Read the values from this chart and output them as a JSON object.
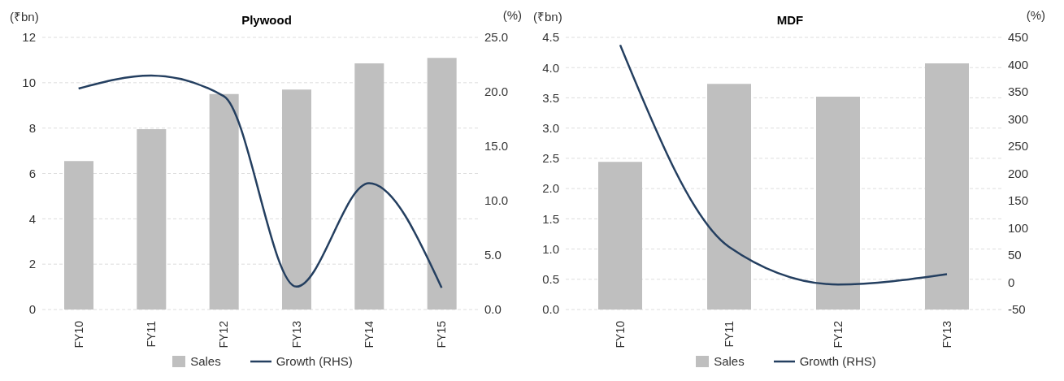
{
  "chart_data": [
    {
      "type": "bar",
      "title": "Plywood",
      "ylabel": "(₹bn)",
      "y2label": "(%)",
      "categories": [
        "FY10",
        "FY11",
        "FY12",
        "FY13",
        "FY14",
        "FY15"
      ],
      "series": [
        {
          "name": "Sales",
          "color": "#bfbfbf",
          "values": [
            6.55,
            7.95,
            9.5,
            9.7,
            10.85,
            11.1
          ]
        },
        {
          "name": "Growth (RHS)",
          "type": "line",
          "axis": "y2",
          "color": "#243f60",
          "values": [
            20.3,
            21.5,
            19.6,
            2.1,
            11.6,
            2.0
          ]
        }
      ],
      "ylim": [
        0,
        12
      ],
      "yticks": [
        0,
        2,
        4,
        6,
        8,
        10,
        12
      ],
      "y2lim": [
        0,
        25
      ],
      "y2ticks": [
        {
          "value": 0,
          "label": "0.0"
        },
        {
          "value": 5,
          "label": "5.0"
        },
        {
          "value": 10,
          "label": "10.0"
        },
        {
          "value": 15,
          "label": "15.0"
        },
        {
          "value": 20,
          "label": "20.0"
        },
        {
          "value": 25,
          "label": "25.0"
        }
      ],
      "grid": "y",
      "legend": "bottom",
      "marker": "none",
      "line_style": "solid"
    },
    {
      "type": "bar",
      "title": "MDF",
      "ylabel": "(₹bn)",
      "y2label": "(%)",
      "categories": [
        "FY10",
        "FY11",
        "FY12",
        "FY13"
      ],
      "series": [
        {
          "name": "Sales",
          "color": "#bfbfbf",
          "values": [
            2.44,
            3.73,
            3.52,
            4.07
          ]
        },
        {
          "name": "Growth (RHS)",
          "type": "line",
          "axis": "y2",
          "color": "#243f60",
          "values": [
            436,
            65,
            -4,
            15
          ]
        }
      ],
      "ylim": [
        0,
        4.5
      ],
      "yticks": [
        {
          "value": 0,
          "label": "0.0"
        },
        {
          "value": 0.5,
          "label": "0.5"
        },
        {
          "value": 1,
          "label": "1.0"
        },
        {
          "value": 1.5,
          "label": "1.5"
        },
        {
          "value": 2,
          "label": "2.0"
        },
        {
          "value": 2.5,
          "label": "2.5"
        },
        {
          "value": 3,
          "label": "3.0"
        },
        {
          "value": 3.5,
          "label": "3.5"
        },
        {
          "value": 4,
          "label": "4.0"
        },
        {
          "value": 4.5,
          "label": "4.5"
        }
      ],
      "y2lim": [
        -50,
        450
      ],
      "y2ticks": [
        -50,
        0,
        50,
        100,
        150,
        200,
        250,
        300,
        350,
        400,
        450
      ],
      "grid": "y",
      "legend": "bottom",
      "marker": "none",
      "line_style": "solid"
    }
  ]
}
